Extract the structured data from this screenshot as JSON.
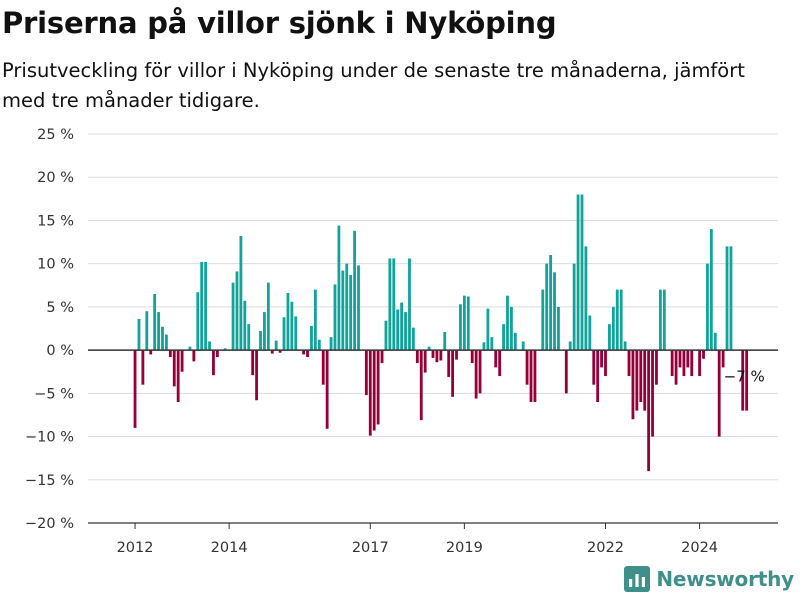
{
  "header": {
    "title": "Priserna på villor sjönk i Nyköping",
    "subtitle": "Prisutveckling för villor i Nyköping under de senaste tre månaderna, jämfört med tre månader tidigare."
  },
  "brand": {
    "name": "Newsworthy",
    "logo_icon": "bar-chart-logo-icon",
    "color": "#3f8f8a"
  },
  "colors": {
    "positive": "#12a39a",
    "negative": "#960038",
    "grid": "#dddddd",
    "zero_line": "#333333"
  },
  "chart_data": {
    "type": "bar",
    "ylim": [
      -20,
      25
    ],
    "yticks": [
      {
        "value": 25,
        "label": "25 %"
      },
      {
        "value": 20,
        "label": "20 %"
      },
      {
        "value": 15,
        "label": "15 %"
      },
      {
        "value": 10,
        "label": "10 %"
      },
      {
        "value": 5,
        "label": "5 %"
      },
      {
        "value": 0,
        "label": "0 %"
      },
      {
        "value": -5,
        "label": "−5 %"
      },
      {
        "value": -10,
        "label": "−10 %"
      },
      {
        "value": -15,
        "label": "−15 %"
      },
      {
        "value": -20,
        "label": "−20 %"
      }
    ],
    "xlim": [
      "2011-01",
      "2025-09"
    ],
    "xticks": [
      {
        "date": "2012-01",
        "label": "2012"
      },
      {
        "date": "2014-01",
        "label": "2014"
      },
      {
        "date": "2017-01",
        "label": "2017"
      },
      {
        "date": "2019-01",
        "label": "2019"
      },
      {
        "date": "2022-01",
        "label": "2022"
      },
      {
        "date": "2024-01",
        "label": "2024"
      }
    ],
    "annotation": {
      "date": "2025-01",
      "value": -7,
      "label": "−7 %"
    },
    "points": [
      {
        "date": "2012-01",
        "value": -9
      },
      {
        "date": "2012-02",
        "value": 3.6
      },
      {
        "date": "2012-03",
        "value": -4
      },
      {
        "date": "2012-04",
        "value": 4.5
      },
      {
        "date": "2012-05",
        "value": -0.5
      },
      {
        "date": "2012-06",
        "value": 6.5
      },
      {
        "date": "2012-07",
        "value": 4.4
      },
      {
        "date": "2012-08",
        "value": 2.7
      },
      {
        "date": "2012-09",
        "value": 1.8
      },
      {
        "date": "2012-10",
        "value": -0.8
      },
      {
        "date": "2012-11",
        "value": -4.2
      },
      {
        "date": "2012-12",
        "value": -6
      },
      {
        "date": "2013-01",
        "value": -2.5
      },
      {
        "date": "2013-02",
        "value": 0
      },
      {
        "date": "2013-03",
        "value": 0.4
      },
      {
        "date": "2013-04",
        "value": -1.3
      },
      {
        "date": "2013-05",
        "value": 6.7
      },
      {
        "date": "2013-06",
        "value": 10.2
      },
      {
        "date": "2013-07",
        "value": 10.2
      },
      {
        "date": "2013-08",
        "value": 1
      },
      {
        "date": "2013-09",
        "value": -2.9
      },
      {
        "date": "2013-10",
        "value": -0.8
      },
      {
        "date": "2013-11",
        "value": 0
      },
      {
        "date": "2013-12",
        "value": 0.2
      },
      {
        "date": "2014-01",
        "value": 0
      },
      {
        "date": "2014-02",
        "value": 7.8
      },
      {
        "date": "2014-03",
        "value": 9.1
      },
      {
        "date": "2014-04",
        "value": 13.2
      },
      {
        "date": "2014-05",
        "value": 5.7
      },
      {
        "date": "2014-06",
        "value": 3
      },
      {
        "date": "2014-07",
        "value": -2.9
      },
      {
        "date": "2014-08",
        "value": -5.8
      },
      {
        "date": "2014-09",
        "value": 2.2
      },
      {
        "date": "2014-10",
        "value": 4.4
      },
      {
        "date": "2014-11",
        "value": 7.8
      },
      {
        "date": "2014-12",
        "value": -0.4
      },
      {
        "date": "2015-01",
        "value": 1.1
      },
      {
        "date": "2015-02",
        "value": -0.3
      },
      {
        "date": "2015-03",
        "value": 3.8
      },
      {
        "date": "2015-04",
        "value": 6.6
      },
      {
        "date": "2015-05",
        "value": 5.6
      },
      {
        "date": "2015-06",
        "value": 3.9
      },
      {
        "date": "2015-07",
        "value": 0
      },
      {
        "date": "2015-08",
        "value": -0.5
      },
      {
        "date": "2015-09",
        "value": -0.8
      },
      {
        "date": "2015-10",
        "value": 2.8
      },
      {
        "date": "2015-11",
        "value": 7
      },
      {
        "date": "2015-12",
        "value": 1.2
      },
      {
        "date": "2016-01",
        "value": -4
      },
      {
        "date": "2016-02",
        "value": -9.1
      },
      {
        "date": "2016-03",
        "value": 1.5
      },
      {
        "date": "2016-04",
        "value": 7.6
      },
      {
        "date": "2016-05",
        "value": 14.4
      },
      {
        "date": "2016-06",
        "value": 9.2
      },
      {
        "date": "2016-07",
        "value": 10
      },
      {
        "date": "2016-08",
        "value": 8.7
      },
      {
        "date": "2016-09",
        "value": 13.8
      },
      {
        "date": "2016-10",
        "value": 9.8
      },
      {
        "date": "2016-11",
        "value": 0
      },
      {
        "date": "2016-12",
        "value": -5.2
      },
      {
        "date": "2017-01",
        "value": -9.9
      },
      {
        "date": "2017-02",
        "value": -9.3
      },
      {
        "date": "2017-03",
        "value": -8.6
      },
      {
        "date": "2017-04",
        "value": -1.5
      },
      {
        "date": "2017-05",
        "value": 3.4
      },
      {
        "date": "2017-06",
        "value": 10.6
      },
      {
        "date": "2017-07",
        "value": 10.6
      },
      {
        "date": "2017-08",
        "value": 4.7
      },
      {
        "date": "2017-09",
        "value": 5.5
      },
      {
        "date": "2017-10",
        "value": 4.4
      },
      {
        "date": "2017-11",
        "value": 10.6
      },
      {
        "date": "2017-12",
        "value": 2.6
      },
      {
        "date": "2018-01",
        "value": -1.5
      },
      {
        "date": "2018-02",
        "value": -8.1
      },
      {
        "date": "2018-03",
        "value": -2.6
      },
      {
        "date": "2018-04",
        "value": 0.4
      },
      {
        "date": "2018-05",
        "value": -0.9
      },
      {
        "date": "2018-06",
        "value": -1.4
      },
      {
        "date": "2018-07",
        "value": -1.2
      },
      {
        "date": "2018-08",
        "value": 2.1
      },
      {
        "date": "2018-09",
        "value": -3.1
      },
      {
        "date": "2018-10",
        "value": -5.4
      },
      {
        "date": "2018-11",
        "value": -1.1
      },
      {
        "date": "2018-12",
        "value": 5.3
      },
      {
        "date": "2019-01",
        "value": 6.3
      },
      {
        "date": "2019-02",
        "value": 6.2
      },
      {
        "date": "2019-03",
        "value": -1.5
      },
      {
        "date": "2019-04",
        "value": -5.6
      },
      {
        "date": "2019-05",
        "value": -5
      },
      {
        "date": "2019-06",
        "value": 0.9
      },
      {
        "date": "2019-07",
        "value": 4.8
      },
      {
        "date": "2019-08",
        "value": 1.5
      },
      {
        "date": "2019-09",
        "value": -2
      },
      {
        "date": "2019-10",
        "value": -3
      },
      {
        "date": "2019-11",
        "value": 3
      },
      {
        "date": "2019-12",
        "value": 6.3
      },
      {
        "date": "2020-01",
        "value": 5
      },
      {
        "date": "2020-02",
        "value": 2
      },
      {
        "date": "2020-03",
        "value": 0
      },
      {
        "date": "2020-04",
        "value": 1
      },
      {
        "date": "2020-05",
        "value": -4
      },
      {
        "date": "2020-06",
        "value": -6
      },
      {
        "date": "2020-07",
        "value": -6
      },
      {
        "date": "2020-08",
        "value": 0
      },
      {
        "date": "2020-09",
        "value": 7
      },
      {
        "date": "2020-10",
        "value": 10
      },
      {
        "date": "2020-11",
        "value": 11
      },
      {
        "date": "2020-12",
        "value": 9
      },
      {
        "date": "2021-01",
        "value": 5
      },
      {
        "date": "2021-02",
        "value": 0
      },
      {
        "date": "2021-03",
        "value": -5
      },
      {
        "date": "2021-04",
        "value": 1
      },
      {
        "date": "2021-05",
        "value": 10
      },
      {
        "date": "2021-06",
        "value": 18
      },
      {
        "date": "2021-07",
        "value": 18
      },
      {
        "date": "2021-08",
        "value": 12
      },
      {
        "date": "2021-09",
        "value": 4
      },
      {
        "date": "2021-10",
        "value": -4
      },
      {
        "date": "2021-11",
        "value": -6
      },
      {
        "date": "2021-12",
        "value": -2
      },
      {
        "date": "2022-01",
        "value": -3
      },
      {
        "date": "2022-02",
        "value": 3
      },
      {
        "date": "2022-03",
        "value": 5
      },
      {
        "date": "2022-04",
        "value": 7
      },
      {
        "date": "2022-05",
        "value": 7
      },
      {
        "date": "2022-06",
        "value": 1
      },
      {
        "date": "2022-07",
        "value": -3
      },
      {
        "date": "2022-08",
        "value": -8
      },
      {
        "date": "2022-09",
        "value": -7
      },
      {
        "date": "2022-10",
        "value": -6
      },
      {
        "date": "2022-11",
        "value": -7
      },
      {
        "date": "2022-12",
        "value": -14
      },
      {
        "date": "2023-01",
        "value": -10
      },
      {
        "date": "2023-02",
        "value": -4
      },
      {
        "date": "2023-03",
        "value": 7
      },
      {
        "date": "2023-04",
        "value": 7
      },
      {
        "date": "2023-05",
        "value": 0
      },
      {
        "date": "2023-06",
        "value": -3
      },
      {
        "date": "2023-07",
        "value": -4
      },
      {
        "date": "2023-08",
        "value": -2
      },
      {
        "date": "2023-09",
        "value": -3
      },
      {
        "date": "2023-10",
        "value": -2
      },
      {
        "date": "2023-11",
        "value": -3
      },
      {
        "date": "2023-12",
        "value": 0
      },
      {
        "date": "2024-01",
        "value": -3
      },
      {
        "date": "2024-02",
        "value": -1
      },
      {
        "date": "2024-03",
        "value": 10
      },
      {
        "date": "2024-04",
        "value": 14
      },
      {
        "date": "2024-05",
        "value": 2
      },
      {
        "date": "2024-06",
        "value": -10
      },
      {
        "date": "2024-07",
        "value": -2
      },
      {
        "date": "2024-08",
        "value": 12
      },
      {
        "date": "2024-09",
        "value": 12
      },
      {
        "date": "2024-10",
        "value": 0
      },
      {
        "date": "2024-11",
        "value": 0
      },
      {
        "date": "2024-12",
        "value": -7
      },
      {
        "date": "2025-01",
        "value": -7
      }
    ]
  }
}
